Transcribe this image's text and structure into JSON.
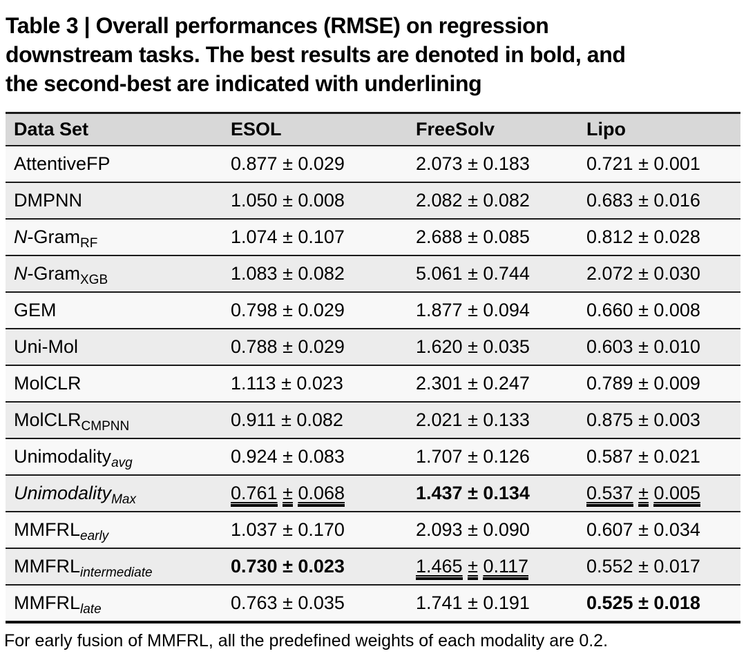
{
  "title": {
    "lines": [
      "Table 3 | Overall performances (RMSE) on regression",
      "downstream tasks. The best results are denoted in bold, and",
      "the second-best are indicated with underlining"
    ]
  },
  "table": {
    "columns": [
      "Data Set",
      "ESOL",
      "FreeSolv",
      "Lipo"
    ],
    "rows": [
      {
        "shade": "light",
        "label": [
          {
            "t": "AttentiveFP"
          }
        ],
        "cells": [
          {
            "v": "0.877 ± 0.029",
            "style": "normal"
          },
          {
            "v": "2.073 ± 0.183",
            "style": "normal"
          },
          {
            "v": "0.721 ± 0.001",
            "style": "normal"
          }
        ]
      },
      {
        "shade": "dark",
        "label": [
          {
            "t": "DMPNN"
          }
        ],
        "cells": [
          {
            "v": "1.050 ± 0.008",
            "style": "normal"
          },
          {
            "v": "2.082 ± 0.082",
            "style": "normal"
          },
          {
            "v": "0.683 ± 0.016",
            "style": "normal"
          }
        ]
      },
      {
        "shade": "light",
        "label": [
          {
            "t": "N",
            "i": true
          },
          {
            "t": "-Gram"
          },
          {
            "t": "RF",
            "sub": true
          }
        ],
        "cells": [
          {
            "v": "1.074 ± 0.107",
            "style": "normal"
          },
          {
            "v": "2.688 ± 0.085",
            "style": "normal"
          },
          {
            "v": "0.812 ± 0.028",
            "style": "normal"
          }
        ]
      },
      {
        "shade": "dark",
        "label": [
          {
            "t": "N",
            "i": true
          },
          {
            "t": "-Gram"
          },
          {
            "t": "XGB",
            "sub": true
          }
        ],
        "cells": [
          {
            "v": "1.083 ± 0.082",
            "style": "normal"
          },
          {
            "v": "5.061 ± 0.744",
            "style": "normal"
          },
          {
            "v": "2.072 ± 0.030",
            "style": "normal"
          }
        ]
      },
      {
        "shade": "light",
        "label": [
          {
            "t": "GEM"
          }
        ],
        "cells": [
          {
            "v": "0.798 ± 0.029",
            "style": "normal"
          },
          {
            "v": "1.877 ± 0.094",
            "style": "normal"
          },
          {
            "v": "0.660 ± 0.008",
            "style": "normal"
          }
        ]
      },
      {
        "shade": "dark",
        "label": [
          {
            "t": "Uni-Mol"
          }
        ],
        "cells": [
          {
            "v": "0.788 ± 0.029",
            "style": "normal"
          },
          {
            "v": "1.620 ± 0.035",
            "style": "normal"
          },
          {
            "v": "0.603 ± 0.010",
            "style": "normal"
          }
        ]
      },
      {
        "shade": "light",
        "label": [
          {
            "t": "MolCLR"
          }
        ],
        "cells": [
          {
            "v": "1.113 ± 0.023",
            "style": "normal"
          },
          {
            "v": "2.301 ± 0.247",
            "style": "normal"
          },
          {
            "v": "0.789 ± 0.009",
            "style": "normal"
          }
        ]
      },
      {
        "shade": "dark",
        "label": [
          {
            "t": "MolCLR"
          },
          {
            "t": "CMPNN",
            "sub": true
          }
        ],
        "cells": [
          {
            "v": "0.911 ± 0.082",
            "style": "normal"
          },
          {
            "v": "2.021 ± 0.133",
            "style": "normal"
          },
          {
            "v": "0.875 ± 0.003",
            "style": "normal"
          }
        ]
      },
      {
        "shade": "light",
        "label": [
          {
            "t": "Unimodality"
          },
          {
            "t": "avg",
            "sub": true,
            "i": true
          }
        ],
        "cells": [
          {
            "v": "0.924 ± 0.083",
            "style": "normal"
          },
          {
            "v": "1.707 ± 0.126",
            "style": "normal"
          },
          {
            "v": "0.587 ± 0.021",
            "style": "normal"
          }
        ]
      },
      {
        "shade": "dark",
        "label": [
          {
            "t": "Unimodality",
            "i": true
          },
          {
            "t": "Max",
            "sub": true,
            "i": true
          }
        ],
        "cells": [
          {
            "v": "0.761 ± 0.068",
            "style": "underline"
          },
          {
            "v": "1.437 ± 0.134",
            "style": "bold"
          },
          {
            "v": "0.537 ± 0.005",
            "style": "underline"
          }
        ]
      },
      {
        "shade": "light",
        "label": [
          {
            "t": "MMFRL"
          },
          {
            "t": "early",
            "sub": true,
            "i": true
          }
        ],
        "cells": [
          {
            "v": "1.037 ± 0.170",
            "style": "normal"
          },
          {
            "v": "2.093 ± 0.090",
            "style": "normal"
          },
          {
            "v": "0.607 ± 0.034",
            "style": "normal"
          }
        ]
      },
      {
        "shade": "dark",
        "label": [
          {
            "t": "MMFRL"
          },
          {
            "t": "intermediate",
            "sub": true,
            "i": true
          }
        ],
        "cells": [
          {
            "v": "0.730 ± 0.023",
            "style": "bold"
          },
          {
            "v": "1.465 ± 0.117",
            "style": "underline"
          },
          {
            "v": "0.552 ± 0.017",
            "style": "normal"
          }
        ]
      },
      {
        "shade": "light",
        "label": [
          {
            "t": "MMFRL"
          },
          {
            "t": "late",
            "sub": true,
            "i": true
          }
        ],
        "cells": [
          {
            "v": "0.763 ± 0.035",
            "style": "normal"
          },
          {
            "v": "1.741 ± 0.191",
            "style": "normal"
          },
          {
            "v": "0.525 ± 0.018",
            "style": "bold"
          }
        ]
      }
    ]
  },
  "footnote": "For early fusion of MMFRL, all the predefined weights of each modality are 0.2.",
  "colors": {
    "header_bg": "#d8d8d8",
    "row_light": "#f8f8f8",
    "row_dark": "#ececec",
    "rule": "#1a1a1a",
    "text": "#000000"
  }
}
